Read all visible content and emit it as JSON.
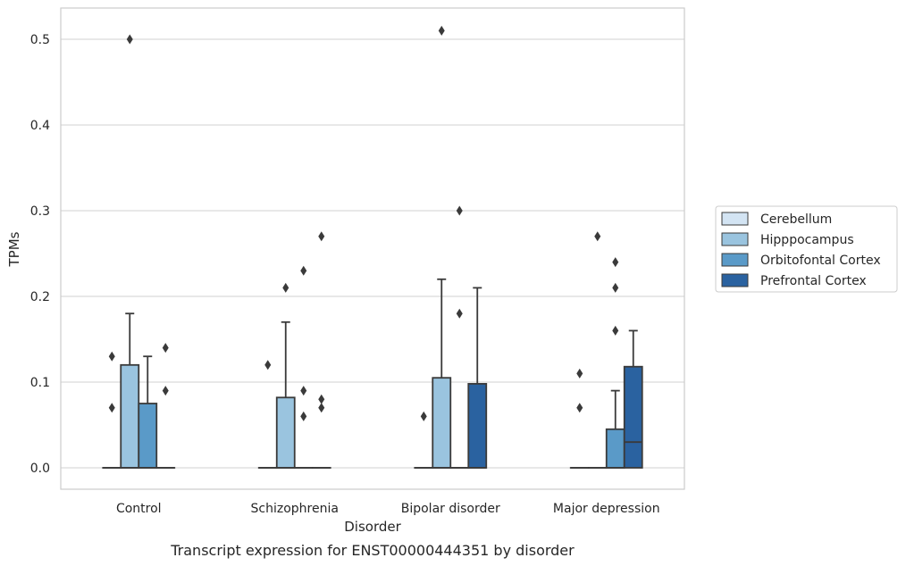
{
  "chart_data": {
    "type": "box",
    "caption": "Transcript expression for ENST00000444351 by disorder",
    "xlabel": "Disorder",
    "ylabel": "TPMs",
    "ylim": [
      -0.025,
      0.535
    ],
    "yticks": [
      0.0,
      0.1,
      0.2,
      0.3,
      0.4,
      0.5
    ],
    "ytick_labels": [
      "0.0",
      "0.1",
      "0.2",
      "0.3",
      "0.4",
      "0.5"
    ],
    "grid": "horizontal",
    "legend_position": "right",
    "categories": [
      "Control",
      "Schizophrenia",
      "Bipolar disorder",
      "Major depression"
    ],
    "series": [
      {
        "name": "Cerebellum",
        "color": "#d3e4f3",
        "boxes": [
          {
            "q1": 0,
            "median": 0,
            "q3": 0,
            "whisker_low": 0,
            "whisker_high": 0,
            "outliers": [
              0.07,
              0.13
            ]
          },
          {
            "q1": 0,
            "median": 0,
            "q3": 0,
            "whisker_low": 0,
            "whisker_high": 0,
            "outliers": [
              0.12
            ]
          },
          {
            "q1": 0,
            "median": 0,
            "q3": 0,
            "whisker_low": 0,
            "whisker_high": 0,
            "outliers": [
              0.06
            ]
          },
          {
            "q1": 0,
            "median": 0,
            "q3": 0,
            "whisker_low": 0,
            "whisker_high": 0,
            "outliers": [
              0.07,
              0.11
            ]
          }
        ]
      },
      {
        "name": "Hipppocampus",
        "color": "#9ac4df",
        "boxes": [
          {
            "q1": 0,
            "median": 0,
            "q3": 0.12,
            "whisker_low": 0,
            "whisker_high": 0.18,
            "outliers": [
              0.5
            ]
          },
          {
            "q1": 0,
            "median": 0,
            "q3": 0.082,
            "whisker_low": 0,
            "whisker_high": 0.17,
            "outliers": [
              0.21
            ]
          },
          {
            "q1": 0,
            "median": 0,
            "q3": 0.105,
            "whisker_low": 0,
            "whisker_high": 0.22,
            "outliers": [
              0.51
            ]
          },
          {
            "q1": 0,
            "median": 0,
            "q3": 0,
            "whisker_low": 0,
            "whisker_high": 0,
            "outliers": [
              0.27
            ]
          }
        ]
      },
      {
        "name": "Orbitofontal Cortex",
        "color": "#5a9ac8",
        "boxes": [
          {
            "q1": 0,
            "median": 0,
            "q3": 0.075,
            "whisker_low": 0,
            "whisker_high": 0.13,
            "outliers": []
          },
          {
            "q1": 0,
            "median": 0,
            "q3": 0,
            "whisker_low": 0,
            "whisker_high": 0,
            "outliers": [
              0.06,
              0.09,
              0.23
            ]
          },
          {
            "q1": 0,
            "median": 0,
            "q3": 0,
            "whisker_low": 0,
            "whisker_high": 0,
            "outliers": [
              0.18,
              0.3
            ]
          },
          {
            "q1": 0,
            "median": 0,
            "q3": 0.045,
            "whisker_low": 0,
            "whisker_high": 0.09,
            "outliers": [
              0.16,
              0.21,
              0.24
            ]
          }
        ]
      },
      {
        "name": "Prefrontal Cortex",
        "color": "#2a62a0",
        "boxes": [
          {
            "q1": 0,
            "median": 0,
            "q3": 0,
            "whisker_low": 0,
            "whisker_high": 0,
            "outliers": [
              0.09,
              0.14
            ]
          },
          {
            "q1": 0,
            "median": 0,
            "q3": 0,
            "whisker_low": 0,
            "whisker_high": 0,
            "outliers": [
              0.07,
              0.08,
              0.27
            ]
          },
          {
            "q1": 0,
            "median": 0,
            "q3": 0.098,
            "whisker_low": 0,
            "whisker_high": 0.21,
            "outliers": []
          },
          {
            "q1": 0,
            "median": 0.03,
            "q3": 0.118,
            "whisker_low": 0,
            "whisker_high": 0.16,
            "outliers": []
          }
        ]
      }
    ]
  }
}
